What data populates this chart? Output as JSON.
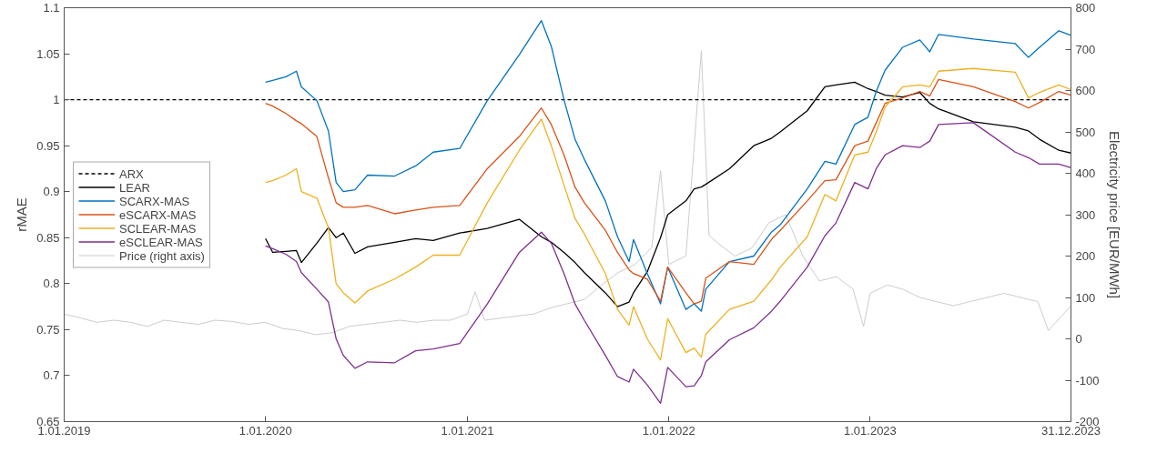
{
  "chart_data": {
    "type": "line",
    "xlabel": null,
    "ylabel": "rMAE",
    "y2label": "Electricity price [EUR/MWh]",
    "xlim": [
      "2019-01-01",
      "2023-12-31"
    ],
    "xticks": [
      {
        "value": "2019-01-01",
        "label": "1.01.2019"
      },
      {
        "value": "2020-01-01",
        "label": "1.01.2020"
      },
      {
        "value": "2021-01-01",
        "label": "1.01.2021"
      },
      {
        "value": "2022-01-01",
        "label": "1.01.2022"
      },
      {
        "value": "2023-01-01",
        "label": "1.01.2023"
      },
      {
        "value": "2023-12-31",
        "label": "31.12.2023"
      }
    ],
    "ylim": [
      0.65,
      1.1
    ],
    "yticks": [
      0.65,
      0.7,
      0.75,
      0.8,
      0.85,
      0.9,
      0.95,
      1,
      1.05,
      1.1
    ],
    "y2lim": [
      -200,
      800
    ],
    "y2ticks": [
      -200,
      -100,
      0,
      100,
      200,
      300,
      400,
      500,
      600,
      700,
      800
    ],
    "grid": false,
    "legend": "left",
    "x": [
      "2020-01-01",
      "2020-01-14",
      "2020-02-07",
      "2020-02-26",
      "2020-03-06",
      "2020-04-03",
      "2020-04-24",
      "2020-05-08",
      "2020-05-21",
      "2020-06-11",
      "2020-07-04",
      "2020-08-22",
      "2020-09-29",
      "2020-10-31",
      "2020-12-18",
      "2021-02-06",
      "2021-04-05",
      "2021-05-15",
      "2021-06-02",
      "2021-06-25",
      "2021-07-15",
      "2021-08-01",
      "2021-09-08",
      "2021-09-30",
      "2021-10-21",
      "2021-10-29",
      "2021-11-23",
      "2021-12-17",
      "2021-12-30",
      "2022-02-01",
      "2022-02-16",
      "2022-03-01",
      "2022-03-09",
      "2022-04-21",
      "2022-06-04",
      "2022-07-06",
      "2022-07-22",
      "2022-09-09",
      "2022-10-11",
      "2022-10-31",
      "2022-12-04",
      "2022-12-28",
      "2023-01-12",
      "2023-01-28",
      "2023-03-01",
      "2023-04-01",
      "2023-04-19",
      "2023-05-05",
      "2023-07-07",
      "2023-09-21",
      "2023-10-15",
      "2023-11-04",
      "2023-12-09",
      "2023-12-31"
    ],
    "series": [
      {
        "name": "ARX",
        "color": "#000000",
        "line_style": "dashed",
        "x": [
          "2019-01-01",
          "2023-12-31"
        ],
        "values": [
          1,
          1
        ]
      },
      {
        "name": "LEAR",
        "color": "#000000",
        "values": [
          0.849,
          0.834,
          0.835,
          0.836,
          0.823,
          0.844,
          0.861,
          0.85,
          0.855,
          0.833,
          0.84,
          0.845,
          0.849,
          0.847,
          0.855,
          0.86,
          0.87,
          0.851,
          0.845,
          0.834,
          0.823,
          0.812,
          0.79,
          0.775,
          0.78,
          0.79,
          0.813,
          0.85,
          0.875,
          0.89,
          0.903,
          0.905,
          0.908,
          0.925,
          0.95,
          0.958,
          0.965,
          0.988,
          1.014,
          1.016,
          1.019,
          1.012,
          1.009,
          1.005,
          1.003,
          1.008,
          0.996,
          0.99,
          0.976,
          0.97,
          0.966,
          0.957,
          0.945,
          0.942
        ]
      },
      {
        "name": "SCARX-MAS",
        "color": "#0072bd",
        "values": [
          1.019,
          1.021,
          1.025,
          1.031,
          1.014,
          0.999,
          0.966,
          0.91,
          0.9,
          0.902,
          0.918,
          0.917,
          0.928,
          0.943,
          0.947,
          0.999,
          1.049,
          1.086,
          1.058,
          1.0,
          0.957,
          0.935,
          0.89,
          0.851,
          0.824,
          0.848,
          0.811,
          0.778,
          0.818,
          0.772,
          0.778,
          0.77,
          0.794,
          0.824,
          0.83,
          0.856,
          0.864,
          0.903,
          0.933,
          0.93,
          0.973,
          0.981,
          1.009,
          1.032,
          1.057,
          1.065,
          1.052,
          1.071,
          1.066,
          1.061,
          1.046,
          1.057,
          1.075,
          1.07
        ]
      },
      {
        "name": "eSCARX-MAS",
        "color": "#d95319",
        "values": [
          0.996,
          0.993,
          0.985,
          0.977,
          0.974,
          0.96,
          0.915,
          0.888,
          0.883,
          0.883,
          0.885,
          0.876,
          0.88,
          0.883,
          0.885,
          0.925,
          0.96,
          0.991,
          0.973,
          0.94,
          0.905,
          0.888,
          0.858,
          0.834,
          0.815,
          0.811,
          0.805,
          0.781,
          0.818,
          0.79,
          0.778,
          0.781,
          0.806,
          0.824,
          0.821,
          0.848,
          0.858,
          0.89,
          0.912,
          0.913,
          0.95,
          0.955,
          0.975,
          0.996,
          1.002,
          1.009,
          1.004,
          1.022,
          1.014,
          0.998,
          0.991,
          0.997,
          1.009,
          1.005
        ]
      },
      {
        "name": "SCLEAR-MAS",
        "color": "#edb120",
        "values": [
          0.91,
          0.912,
          0.918,
          0.925,
          0.9,
          0.893,
          0.861,
          0.8,
          0.79,
          0.779,
          0.792,
          0.805,
          0.818,
          0.831,
          0.831,
          0.888,
          0.945,
          0.979,
          0.95,
          0.907,
          0.871,
          0.854,
          0.811,
          0.772,
          0.755,
          0.775,
          0.74,
          0.717,
          0.762,
          0.725,
          0.73,
          0.72,
          0.745,
          0.772,
          0.781,
          0.804,
          0.818,
          0.851,
          0.897,
          0.89,
          0.94,
          0.943,
          0.965,
          0.992,
          1.014,
          1.016,
          1.014,
          1.031,
          1.034,
          1.03,
          1.002,
          1.008,
          1.016,
          1.011
        ]
      },
      {
        "name": "eSCLEAR-MAS",
        "color": "#7e2f8e",
        "values": [
          0.841,
          0.838,
          0.832,
          0.824,
          0.812,
          0.794,
          0.78,
          0.74,
          0.722,
          0.708,
          0.715,
          0.714,
          0.727,
          0.729,
          0.735,
          0.778,
          0.834,
          0.856,
          0.844,
          0.811,
          0.778,
          0.76,
          0.722,
          0.699,
          0.693,
          0.707,
          0.69,
          0.67,
          0.709,
          0.688,
          0.689,
          0.7,
          0.715,
          0.739,
          0.752,
          0.77,
          0.781,
          0.818,
          0.852,
          0.866,
          0.91,
          0.903,
          0.925,
          0.94,
          0.95,
          0.948,
          0.955,
          0.973,
          0.975,
          0.943,
          0.937,
          0.93,
          0.93,
          0.926
        ]
      },
      {
        "name": "Price (right axis)",
        "color": "#cccccc",
        "axis": "y2",
        "x": [
          "2019-01-01",
          "2019-02-01",
          "2019-03-01",
          "2019-04-01",
          "2019-05-01",
          "2019-06-01",
          "2019-07-01",
          "2019-08-01",
          "2019-09-01",
          "2019-10-01",
          "2019-11-01",
          "2019-12-01",
          "2020-01-01",
          "2020-02-01",
          "2020-03-01",
          "2020-04-01",
          "2020-05-01",
          "2020-06-01",
          "2020-07-01",
          "2020-08-01",
          "2020-09-01",
          "2020-10-01",
          "2020-11-01",
          "2020-12-01",
          "2021-01-01",
          "2021-01-15",
          "2021-02-01",
          "2021-03-01",
          "2021-04-01",
          "2021-05-01",
          "2021-06-01",
          "2021-07-01",
          "2021-08-01",
          "2021-09-01",
          "2021-10-01",
          "2021-11-01",
          "2021-12-01",
          "2021-12-17",
          "2022-01-01",
          "2022-02-01",
          "2022-03-01",
          "2022-03-15",
          "2022-04-01",
          "2022-05-01",
          "2022-06-01",
          "2022-07-01",
          "2022-08-01",
          "2022-09-01",
          "2022-10-01",
          "2022-11-01",
          "2022-12-01",
          "2022-12-20",
          "2023-01-01",
          "2023-02-01",
          "2023-03-01",
          "2023-04-01",
          "2023-05-01",
          "2023-06-01",
          "2023-07-01",
          "2023-08-01",
          "2023-09-01",
          "2023-10-01",
          "2023-11-01",
          "2023-11-20",
          "2023-12-31"
        ],
        "values": [
          60,
          50,
          40,
          45,
          40,
          30,
          45,
          40,
          35,
          45,
          42,
          35,
          40,
          25,
          20,
          10,
          15,
          30,
          35,
          40,
          45,
          40,
          45,
          45,
          60,
          114,
          45,
          50,
          55,
          60,
          75,
          85,
          95,
          130,
          160,
          180,
          220,
          406,
          180,
          200,
          697,
          250,
          230,
          200,
          220,
          280,
          300,
          200,
          140,
          150,
          120,
          30,
          110,
          130,
          120,
          100,
          90,
          80,
          90,
          100,
          110,
          100,
          90,
          20,
          80
        ]
      }
    ]
  }
}
